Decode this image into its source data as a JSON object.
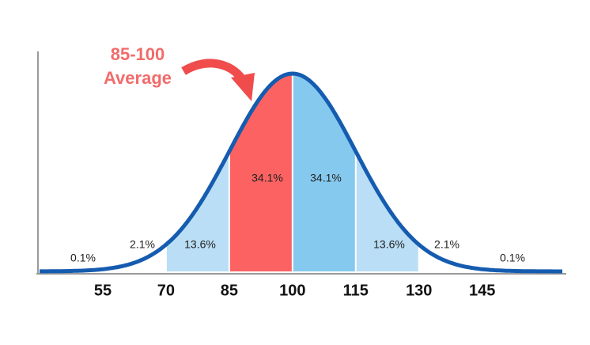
{
  "chart_data": {
    "type": "bell",
    "annotation": [
      "85-100",
      "Average"
    ],
    "xlim": [
      40,
      164
    ],
    "xticks": [
      55,
      70,
      85,
      100,
      115,
      130,
      145
    ],
    "values": [
      0.1,
      2.1,
      13.6,
      34.1,
      34.1,
      13.6,
      2.1,
      0.1
    ],
    "value_labels": [
      "0.1%",
      "2.1%",
      "13.6%",
      "34.1%",
      "34.1%",
      "13.6%",
      "2.1%",
      "0.1%"
    ],
    "colors": [
      "#ffffff",
      "#ffffff",
      "#b9def5",
      "#fc6262",
      "#86c9ef",
      "#b9def5",
      "#ffffff",
      "#ffffff"
    ],
    "line_color": "#155cb0"
  }
}
